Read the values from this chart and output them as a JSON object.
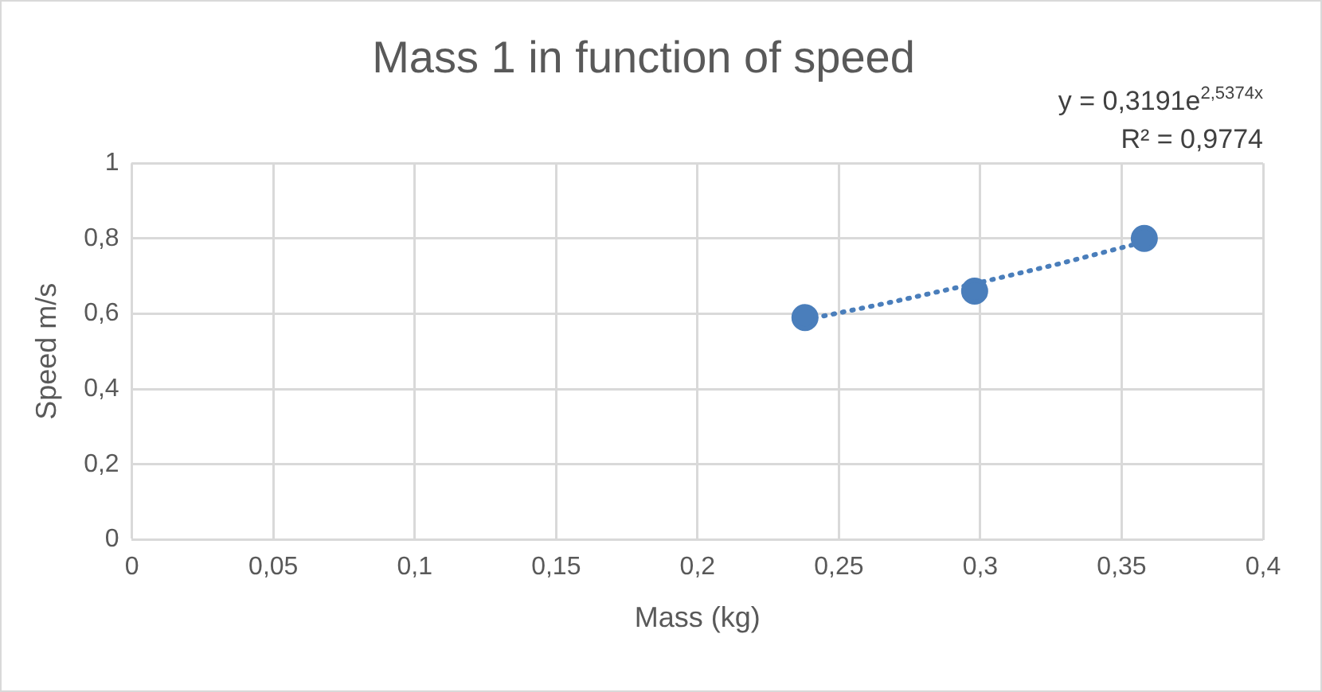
{
  "chart_data": {
    "type": "scatter",
    "title": "Mass 1 in function of speed",
    "xlabel": "Mass (kg)",
    "ylabel": "Speed m/s",
    "annotations": [
      "y = 0,3191e$^{2,5374x}$",
      "R² = 0,9774"
    ],
    "series": [
      {
        "color": "#4a7ebb",
        "x": [
          0.238,
          0.298,
          0.358
        ],
        "values": [
          0.59,
          0.66,
          0.8
        ],
        "marker": "circle"
      },
      {
        "type": "line",
        "color": "#4a7ebb",
        "x": [
          0.238,
          0.268,
          0.298,
          0.328,
          0.358
        ],
        "values": [
          0.584,
          0.63,
          0.68,
          0.733,
          0.791
        ],
        "marker": "none",
        "line_style": "dotted"
      }
    ],
    "xlim": [
      0,
      0.4
    ],
    "xticks": [
      0,
      {
        "value": 0.05,
        "label": "0,05"
      },
      {
        "value": 0.1,
        "label": "0,1"
      },
      {
        "value": 0.15,
        "label": "0,15"
      },
      {
        "value": 0.2,
        "label": "0,2"
      },
      {
        "value": 0.25,
        "label": "0,25"
      },
      {
        "value": 0.3,
        "label": "0,3"
      },
      {
        "value": 0.35,
        "label": "0,35"
      },
      {
        "value": 0.4,
        "label": "0,4"
      }
    ],
    "ylim": [
      0,
      1
    ],
    "yticks": [
      0,
      {
        "value": 0.2,
        "label": "0,2"
      },
      {
        "value": 0.4,
        "label": "0,4"
      },
      {
        "value": 0.6,
        "label": "0,6"
      },
      {
        "value": 0.8,
        "label": "0,8"
      },
      1
    ],
    "grid": true,
    "legend": false
  }
}
